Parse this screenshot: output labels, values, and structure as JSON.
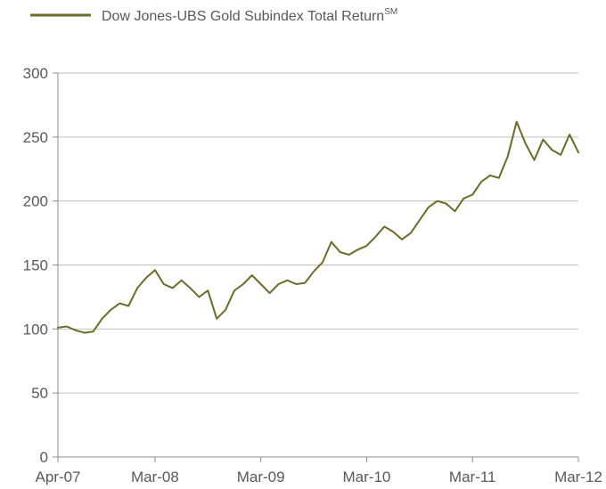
{
  "chart_data": {
    "type": "line",
    "title": "",
    "xlabel": "",
    "ylabel": "",
    "ylim": [
      0,
      300
    ],
    "yticks": [
      0,
      50,
      100,
      150,
      200,
      250,
      300
    ],
    "xlim": [
      "2007-04",
      "2012-03"
    ],
    "xticks": [
      {
        "date": "2007-04",
        "label": "Apr-07"
      },
      {
        "date": "2008-03",
        "label": "Mar-08"
      },
      {
        "date": "2009-03",
        "label": "Mar-09"
      },
      {
        "date": "2010-03",
        "label": "Mar-10"
      },
      {
        "date": "2011-03",
        "label": "Mar-11"
      },
      {
        "date": "2012-03",
        "label": "Mar-12"
      }
    ],
    "grid": "horizontal",
    "legend_position": "top-left",
    "series": [
      {
        "name": "Dow Jones-UBS Gold Subindex Total Return",
        "name_superscript": "SM",
        "color": "#6b6b2a",
        "x": [
          "2007-04",
          "2007-05",
          "2007-06",
          "2007-07",
          "2007-08",
          "2007-09",
          "2007-10",
          "2007-11",
          "2007-12",
          "2008-01",
          "2008-02",
          "2008-03",
          "2008-04",
          "2008-05",
          "2008-06",
          "2008-07",
          "2008-08",
          "2008-09",
          "2008-10",
          "2008-11",
          "2008-12",
          "2009-01",
          "2009-02",
          "2009-03",
          "2009-04",
          "2009-05",
          "2009-06",
          "2009-07",
          "2009-08",
          "2009-09",
          "2009-10",
          "2009-11",
          "2009-12",
          "2010-01",
          "2010-02",
          "2010-03",
          "2010-04",
          "2010-05",
          "2010-06",
          "2010-07",
          "2010-08",
          "2010-09",
          "2010-10",
          "2010-11",
          "2010-12",
          "2011-01",
          "2011-02",
          "2011-03",
          "2011-04",
          "2011-05",
          "2011-06",
          "2011-07",
          "2011-08",
          "2011-09",
          "2011-10",
          "2011-11",
          "2011-12",
          "2012-01",
          "2012-02",
          "2012-03"
        ],
        "values": [
          101,
          102,
          99,
          97,
          98,
          108,
          115,
          120,
          118,
          132,
          140,
          146,
          135,
          132,
          138,
          132,
          125,
          130,
          108,
          115,
          130,
          135,
          142,
          135,
          128,
          135,
          138,
          135,
          136,
          145,
          152,
          168,
          160,
          158,
          162,
          165,
          172,
          180,
          176,
          170,
          175,
          185,
          195,
          200,
          198,
          192,
          202,
          205,
          215,
          220,
          218,
          235,
          262,
          245,
          232,
          248,
          240,
          236,
          252,
          238
        ]
      }
    ]
  }
}
